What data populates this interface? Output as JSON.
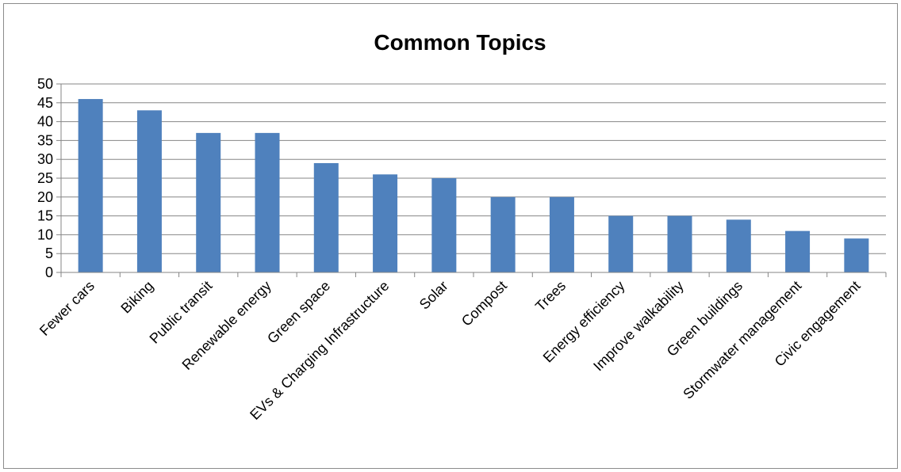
{
  "chart_data": {
    "type": "bar",
    "title": "Common Topics",
    "xlabel": "",
    "ylabel": "",
    "categories": [
      "Fewer cars",
      "Biking",
      "Public transit",
      "Renewable energy",
      "Green space",
      "EVs & Charging Infrastructure",
      "Solar",
      "Compost",
      "Trees",
      "Energy efficiency",
      "Improve walkability",
      "Green buildings",
      "Stormwater management",
      "Civic engagement"
    ],
    "values": [
      46,
      43,
      37,
      37,
      29,
      26,
      25,
      20,
      20,
      15,
      15,
      14,
      11,
      9
    ],
    "ylim": [
      0,
      50
    ],
    "yticks": [
      0,
      5,
      10,
      15,
      20,
      25,
      30,
      35,
      40,
      45,
      50
    ],
    "grid": true,
    "legend": "none",
    "bar_color": "#4f81bd"
  }
}
